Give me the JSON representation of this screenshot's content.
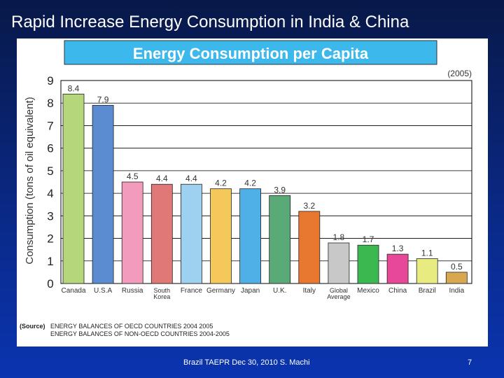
{
  "slide": {
    "title": "Rapid Increase Energy Consumption in India & China",
    "footer": "Brazil TAEPR Dec 30, 2010  S. Machi",
    "page_number": "7"
  },
  "chart_data": {
    "type": "bar",
    "title": "Energy Consumption per Capita",
    "subtitle": "(2005)",
    "ylabel": "Consumption (tons of oil equivalent)",
    "xlabel": "",
    "ylim": [
      0,
      9
    ],
    "yticks": [
      "0",
      "1",
      "2",
      "3",
      "4",
      "5",
      "6",
      "7",
      "8",
      "9"
    ],
    "grid": true,
    "categories": [
      "Canada",
      "U.S.A",
      "Russia",
      "South Korea",
      "France",
      "Germany",
      "Japan",
      "U.K.",
      "Italy",
      "Global Average",
      "Mexico",
      "China",
      "Brazil",
      "India"
    ],
    "category_lines": [
      [
        "Canada"
      ],
      [
        "U.S.A"
      ],
      [
        "Russia"
      ],
      [
        "South",
        "Korea"
      ],
      [
        "France"
      ],
      [
        "Germany"
      ],
      [
        "Japan"
      ],
      [
        "U.K."
      ],
      [
        "Italy"
      ],
      [
        "Global",
        "Average"
      ],
      [
        "Mexico"
      ],
      [
        "China"
      ],
      [
        "Brazil"
      ],
      [
        "India"
      ]
    ],
    "values": [
      8.4,
      7.9,
      4.5,
      4.4,
      4.4,
      4.2,
      4.2,
      3.9,
      3.2,
      1.8,
      1.7,
      1.3,
      1.1,
      0.5
    ],
    "value_labels": [
      "8.4",
      "7.9",
      "4.5",
      "4.4",
      "4.4",
      "4.2",
      "4.2",
      "3.9",
      "3.2",
      "1.8",
      "1.7",
      "1.3",
      "1.1",
      "0.5"
    ],
    "colors": [
      "#b5d67a",
      "#5b8bd0",
      "#f29bbd",
      "#e07878",
      "#9ed0f0",
      "#f5c85c",
      "#4fb0e8",
      "#5aaa78",
      "#e87830",
      "#c8c8c8",
      "#3cb850",
      "#e84898",
      "#e8ec80",
      "#d8a850"
    ],
    "source_label": "(Source)",
    "source_lines": [
      "ENERGY BALANCES OF OECD COUNTRIES 2004 2005",
      "ENERGY BALANCES OF NON-OECD COUNTRIES 2004-2005"
    ],
    "banner_color": "#3cb8ec"
  }
}
